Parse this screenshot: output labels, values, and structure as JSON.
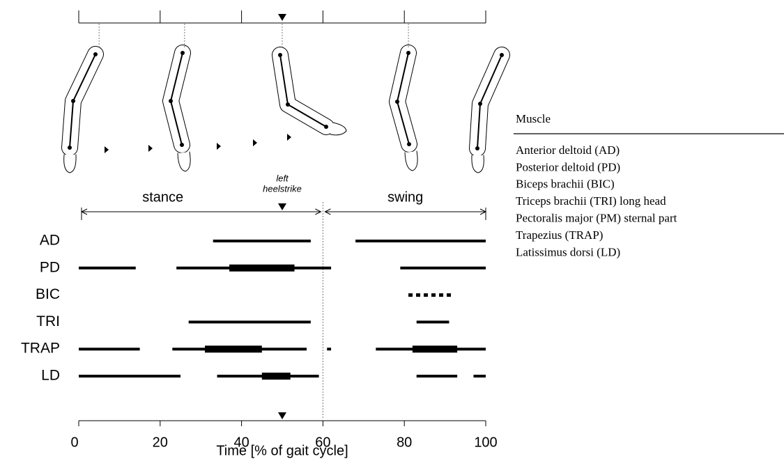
{
  "chart_data": {
    "type": "timeline",
    "x_label": "Time [% of gait cycle]",
    "xlim": [
      0,
      100
    ],
    "xticks": [
      0,
      20,
      40,
      60,
      80,
      100
    ],
    "phases": [
      {
        "name": "stance",
        "range": [
          0,
          60
        ]
      },
      {
        "name": "swing",
        "range": [
          60,
          100
        ]
      }
    ],
    "phase_boundary": 60,
    "event": {
      "label_lines": [
        "left",
        "heelstrike"
      ],
      "value": 50
    },
    "snapshots": [
      5,
      26,
      50,
      81
    ],
    "color": "#000000",
    "series": [
      {
        "name": "AD",
        "ranges": [
          [
            33,
            57
          ],
          [
            68,
            100
          ]
        ],
        "peak_ranges": []
      },
      {
        "name": "PD",
        "ranges": [
          [
            0,
            14
          ],
          [
            24,
            62
          ],
          [
            79,
            100
          ]
        ],
        "peak_ranges": [
          [
            37,
            53
          ]
        ]
      },
      {
        "name": "BIC",
        "ranges": [
          [
            81,
            92
          ]
        ],
        "peak_ranges": [],
        "line_style": "dotted"
      },
      {
        "name": "TRI",
        "ranges": [
          [
            27,
            57
          ],
          [
            83,
            91
          ]
        ],
        "peak_ranges": []
      },
      {
        "name": "TRAP",
        "ranges": [
          [
            0,
            15
          ],
          [
            23,
            56
          ],
          [
            61,
            62
          ],
          [
            73,
            100
          ]
        ],
        "peak_ranges": [
          [
            31,
            45
          ],
          [
            82,
            93
          ]
        ]
      },
      {
        "name": "LD",
        "ranges": [
          [
            0,
            25
          ],
          [
            34,
            59
          ],
          [
            83,
            93
          ],
          [
            97,
            100
          ]
        ],
        "peak_ranges": [
          [
            45,
            52
          ]
        ]
      }
    ]
  },
  "muscle_table": {
    "header": "Muscle",
    "rows": [
      "Anterior deltoid (AD)",
      "Posterior deltoid (PD)",
      "Biceps brachii (BIC)",
      "Triceps brachii (TRI) long head",
      "Pectoralis major (PM) sternal part",
      "Trapezius (TRAP)",
      "Latissimus dorsi (LD)"
    ]
  }
}
